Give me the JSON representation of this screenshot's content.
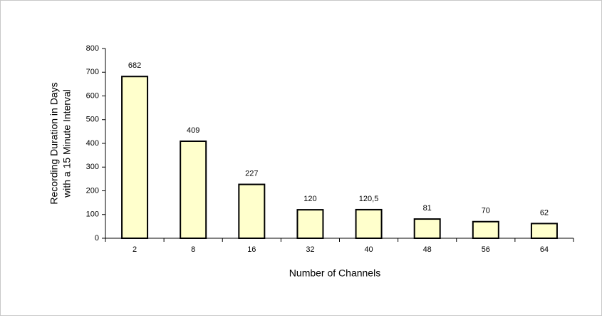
{
  "chart_data": {
    "type": "bar",
    "categories": [
      "2",
      "8",
      "16",
      "32",
      "40",
      "48",
      "56",
      "64"
    ],
    "values": [
      682,
      409,
      227,
      120,
      120.5,
      81,
      70,
      62
    ],
    "value_labels": [
      "682",
      "409",
      "227",
      "120",
      "120,5",
      "81",
      "70",
      "62"
    ],
    "color": "#ffffcc",
    "ylim": [
      0,
      800
    ],
    "yticks": [
      0,
      100,
      200,
      300,
      400,
      500,
      600,
      700,
      800
    ],
    "xlabel": "Number of Channels",
    "ylabel": [
      "Recording Duration in Days",
      "with a 15 Minute Interval"
    ],
    "grid": false
  }
}
